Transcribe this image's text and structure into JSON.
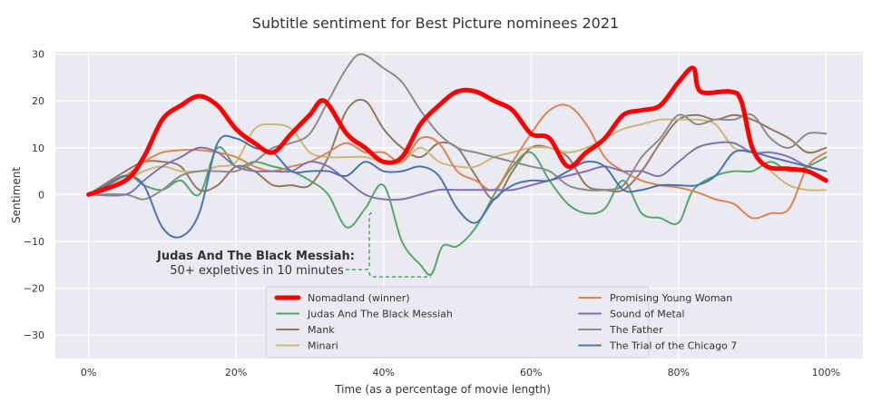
{
  "chart_data": {
    "type": "line",
    "title": "Subtitle sentiment for Best Picture nominees 2021",
    "xlabel": "Time (as a percentage of movie length)",
    "ylabel": "Sentiment",
    "xlim": [
      -4.5,
      105
    ],
    "ylim": [
      -35,
      30.5
    ],
    "xticks": [
      0,
      20,
      40,
      60,
      80,
      100
    ],
    "xtick_labels": [
      "0%",
      "20%",
      "40%",
      "60%",
      "80%",
      "100%"
    ],
    "yticks": [
      30,
      20,
      10,
      0,
      -10,
      -20,
      -30
    ],
    "ytick_labels": [
      "30",
      "20",
      "10",
      "0",
      "−10",
      "−20",
      "−30"
    ],
    "grid": true,
    "legend_placement": "lower-center",
    "background": "#eaeaf2",
    "annotation": {
      "title": "Judas And The Black Messiah:",
      "text": "50+ expletives in 10 minutes",
      "color": "#3c9a3c"
    },
    "series": [
      {
        "name": "Nomadland (winner)",
        "color": "#ff0000",
        "width": 5,
        "x": [
          0,
          5,
          7.5,
          10,
          12.5,
          15,
          17.5,
          20,
          22.5,
          25,
          27.5,
          30,
          32,
          35,
          37.5,
          40,
          42.5,
          45,
          47.5,
          50,
          52.5,
          55,
          57.5,
          60,
          62.5,
          65,
          67.5,
          70,
          72.5,
          75,
          77.5,
          80,
          82,
          83,
          87,
          88.5,
          90,
          92,
          95,
          97.5,
          100
        ],
        "y": [
          0,
          3,
          8,
          16,
          19,
          21,
          19,
          14,
          11,
          9,
          13,
          17,
          20,
          13,
          10,
          7,
          8,
          15,
          19,
          22,
          22,
          20,
          18,
          13,
          12,
          6,
          9,
          12,
          17,
          18,
          19,
          24,
          27,
          22,
          22,
          20,
          10,
          6,
          5.5,
          5,
          3
        ]
      },
      {
        "name": "Judas And The Black Messiah",
        "color": "#55a868",
        "width": 2,
        "x": [
          0,
          5,
          7.5,
          10,
          12.5,
          15,
          17.5,
          20,
          22.5,
          25,
          27.5,
          30,
          32.5,
          35,
          37.5,
          40,
          42.5,
          45,
          46.5,
          48,
          50,
          52.5,
          55,
          57.5,
          60,
          62.5,
          65,
          67.5,
          70,
          72.5,
          75,
          77.5,
          80,
          82,
          85,
          87.5,
          90,
          92.5,
          95,
          97.5,
          100
        ],
        "y": [
          0,
          4,
          2,
          1,
          3,
          0,
          10,
          6,
          7,
          6,
          5,
          3,
          0,
          -7,
          -3,
          2,
          -10,
          -15,
          -17,
          -11,
          -11,
          -7,
          0,
          6,
          9,
          3,
          -2,
          -4,
          -3,
          3,
          -4,
          -5,
          -6,
          1,
          4,
          5,
          5,
          7,
          5,
          6,
          8
        ]
      },
      {
        "name": "Mank",
        "color": "#937860",
        "width": 2,
        "x": [
          0,
          5,
          7.5,
          10,
          12.5,
          15,
          17.5,
          20,
          22.5,
          25,
          27.5,
          30,
          32.5,
          35,
          37.5,
          40,
          42.5,
          45,
          47.5,
          50,
          52.5,
          55,
          57.5,
          60,
          62.5,
          65,
          67.5,
          70,
          72.5,
          75,
          77.5,
          80,
          82.5,
          85,
          87.5,
          90,
          92.5,
          95,
          97.5,
          100
        ],
        "y": [
          0,
          5,
          7,
          7,
          6,
          1,
          2,
          6,
          5,
          2,
          2,
          2,
          8,
          18,
          20,
          14,
          10,
          8,
          11,
          10,
          4,
          -1,
          5,
          10,
          10,
          8,
          2,
          1,
          1,
          5,
          11,
          16,
          17,
          16,
          17,
          16,
          14,
          12,
          9,
          10
        ]
      },
      {
        "name": "Minari",
        "color": "#ccb974",
        "width": 2,
        "x": [
          0,
          5,
          7.5,
          10,
          12.5,
          15,
          17.5,
          20,
          22.5,
          25,
          27.5,
          30,
          32.5,
          35,
          37.5,
          40,
          42.5,
          45,
          47.5,
          50,
          52.5,
          55,
          57.5,
          60,
          62.5,
          65,
          67.5,
          70,
          72.5,
          75,
          77.5,
          80,
          82.5,
          85,
          87.5,
          90,
          92.5,
          95,
          97.5,
          100
        ],
        "y": [
          0,
          3,
          5,
          6,
          5,
          5,
          6,
          7,
          14,
          15,
          14,
          9,
          8,
          8,
          8,
          7,
          7,
          10,
          7,
          6,
          6,
          8,
          9,
          10,
          10,
          9,
          10,
          12,
          14,
          15,
          16,
          16,
          16,
          15,
          10,
          9,
          5,
          2,
          1,
          1
        ]
      },
      {
        "name": "Promising Young Woman",
        "color": "#dd8452",
        "width": 2,
        "x": [
          0,
          5,
          7.5,
          10,
          12.5,
          15,
          17.5,
          20,
          22.5,
          25,
          27.5,
          30,
          32.5,
          35,
          37.5,
          40,
          42.5,
          45,
          47.5,
          50,
          52.5,
          55,
          57.5,
          60,
          62.5,
          65,
          67.5,
          70,
          72.5,
          75,
          77.5,
          80,
          82.5,
          85,
          87.5,
          90,
          92.5,
          95,
          97.5,
          100
        ],
        "y": [
          0,
          4,
          7,
          9,
          9.5,
          9.5,
          9,
          8,
          6,
          5,
          6,
          7,
          9,
          11,
          9,
          9,
          7,
          12,
          11,
          5,
          3,
          1,
          7,
          13,
          18,
          19,
          15,
          8,
          5,
          3,
          2,
          1.5,
          0.5,
          -1,
          -2,
          -5,
          -4,
          -3,
          6,
          9
        ]
      },
      {
        "name": "Sound of Metal",
        "color": "#8172b3",
        "width": 2,
        "x": [
          0,
          5,
          7.5,
          10,
          12.5,
          15,
          17.5,
          20,
          22.5,
          25,
          27.5,
          30,
          32.5,
          35,
          37.5,
          40,
          42.5,
          45,
          47.5,
          50,
          52.5,
          55,
          57.5,
          60,
          62.5,
          65,
          67.5,
          70,
          72.5,
          75,
          77.5,
          80,
          82.5,
          85,
          87.5,
          90,
          92.5,
          95,
          97.5,
          100
        ],
        "y": [
          0,
          0,
          3,
          6,
          8,
          10,
          9,
          6,
          5,
          5,
          5,
          7,
          6,
          3,
          0,
          -1,
          -1,
          0,
          1,
          1,
          1,
          1,
          1,
          2,
          3,
          4,
          5,
          6,
          5,
          5,
          4,
          7,
          10,
          11,
          11,
          9,
          9,
          8,
          6,
          5
        ]
      },
      {
        "name": "The Father",
        "color": "#8c8c8c",
        "width": 2,
        "x": [
          0,
          5,
          7.5,
          10,
          12.5,
          15,
          17.5,
          20,
          22.5,
          25,
          27.5,
          30,
          32.5,
          35,
          37,
          40,
          42.5,
          45,
          47.5,
          50,
          52.5,
          55,
          57.5,
          60,
          62.5,
          65,
          67.5,
          70,
          72.5,
          75,
          77.5,
          80,
          82.5,
          85,
          87.5,
          90,
          92.5,
          95,
          97.5,
          100
        ],
        "y": [
          0,
          0,
          -1,
          1,
          4,
          5,
          5,
          5,
          7,
          10,
          11,
          13,
          20,
          27,
          30,
          27,
          24,
          18,
          13,
          10,
          9,
          8,
          7,
          6,
          5,
          2,
          1,
          1,
          2,
          8,
          12,
          17,
          15,
          16,
          16,
          17,
          12,
          10,
          13,
          13
        ]
      },
      {
        "name": "The Trial of the Chicago 7",
        "color": "#4c72b0",
        "width": 2,
        "x": [
          0,
          2.5,
          5,
          7.5,
          10,
          12.5,
          15,
          17.5,
          20,
          22.5,
          25,
          27.5,
          30,
          32.5,
          35,
          37.5,
          40,
          42.5,
          45,
          47.5,
          50,
          52.5,
          55,
          57.5,
          60,
          62.5,
          65,
          67.5,
          70,
          72.5,
          75,
          77.5,
          80,
          82.5,
          85,
          87.5,
          90,
          92.5,
          95,
          97.5,
          100
        ],
        "y": [
          0,
          2,
          4,
          2,
          -7,
          -9,
          -4,
          11,
          12,
          10,
          9,
          5,
          5,
          5,
          4,
          7,
          5,
          5,
          6,
          4,
          -3,
          -6,
          -1,
          2,
          3,
          3,
          5,
          7,
          6,
          1,
          1,
          2,
          2,
          2,
          4,
          9,
          9,
          8,
          7,
          6,
          5
        ]
      }
    ]
  }
}
